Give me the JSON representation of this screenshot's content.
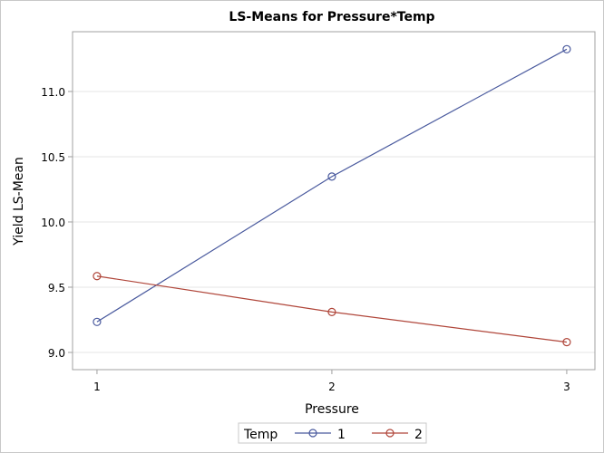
{
  "chart_data": {
    "type": "line",
    "title": "LS-Means for Pressure*Temp",
    "xlabel": "Pressure",
    "ylabel": "Yield LS-Mean",
    "x": [
      1,
      2,
      3
    ],
    "x_ticks": [
      "1",
      "2",
      "3"
    ],
    "xlim": [
      0.896,
      3.12
    ],
    "ylim": [
      8.868,
      11.458
    ],
    "y_ticks": [
      9.0,
      9.5,
      10.0,
      10.5,
      11.0
    ],
    "y_tick_labels": [
      "9.0",
      "9.5",
      "10.0",
      "10.5",
      "11.0"
    ],
    "grid": "horizontal",
    "legend": {
      "title": "Temp",
      "placement": "bottom"
    },
    "series": [
      {
        "name": "1",
        "color": "#4a5a9e",
        "values": [
          9.234,
          10.348,
          11.324
        ]
      },
      {
        "name": "2",
        "color": "#b0463a",
        "values": [
          9.585,
          9.31,
          9.079
        ]
      }
    ]
  }
}
